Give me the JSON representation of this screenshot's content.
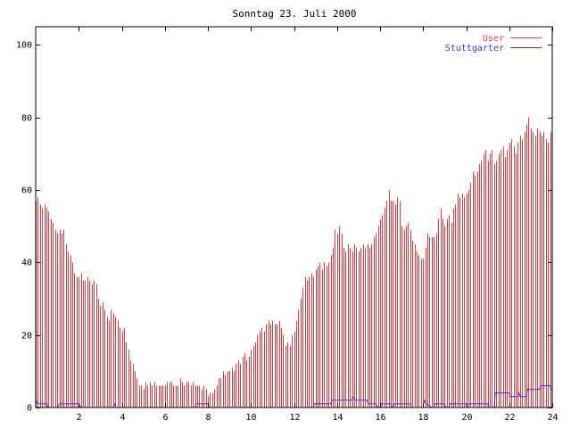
{
  "chart_data": {
    "type": "bar",
    "title": "Sonntag 23. Juli 2000",
    "xlabel": "",
    "ylabel": "",
    "xlim": [
      0,
      24
    ],
    "ylim": [
      0,
      105
    ],
    "x_ticks": [
      2,
      4,
      6,
      8,
      10,
      12,
      14,
      16,
      18,
      20,
      22,
      24
    ],
    "y_ticks": [
      0,
      20,
      40,
      60,
      80,
      100
    ],
    "grid": false,
    "legend_position": "top-right",
    "series": [
      {
        "name": "User",
        "style": "impulses",
        "color": "#e8383f",
        "points": [
          [
            0.0,
            57
          ],
          [
            0.1,
            58
          ],
          [
            0.2,
            56
          ],
          [
            0.3,
            55
          ],
          [
            0.4,
            56
          ],
          [
            0.5,
            55
          ],
          [
            0.6,
            54
          ],
          [
            0.7,
            52
          ],
          [
            0.8,
            51
          ],
          [
            0.9,
            49
          ],
          [
            1.0,
            48
          ],
          [
            1.1,
            49
          ],
          [
            1.2,
            48
          ],
          [
            1.3,
            49
          ],
          [
            1.4,
            45
          ],
          [
            1.5,
            43
          ],
          [
            1.6,
            42
          ],
          [
            1.7,
            40
          ],
          [
            1.8,
            37
          ],
          [
            1.9,
            36
          ],
          [
            2.0,
            36
          ],
          [
            2.1,
            37
          ],
          [
            2.2,
            35
          ],
          [
            2.3,
            35
          ],
          [
            2.4,
            36
          ],
          [
            2.5,
            35
          ],
          [
            2.6,
            34
          ],
          [
            2.7,
            35
          ],
          [
            2.8,
            34
          ],
          [
            2.9,
            30
          ],
          [
            3.0,
            28
          ],
          [
            3.1,
            29
          ],
          [
            3.2,
            27
          ],
          [
            3.3,
            25
          ],
          [
            3.4,
            24
          ],
          [
            3.5,
            27
          ],
          [
            3.6,
            26
          ],
          [
            3.7,
            25
          ],
          [
            3.8,
            24
          ],
          [
            3.9,
            22
          ],
          [
            4.0,
            21
          ],
          [
            4.1,
            22
          ],
          [
            4.2,
            18
          ],
          [
            4.3,
            16
          ],
          [
            4.4,
            13
          ],
          [
            4.5,
            12
          ],
          [
            4.6,
            10
          ],
          [
            4.7,
            8
          ],
          [
            4.8,
            6
          ],
          [
            4.9,
            6
          ],
          [
            5.0,
            5
          ],
          [
            5.1,
            7
          ],
          [
            5.2,
            6
          ],
          [
            5.3,
            7
          ],
          [
            5.4,
            6
          ],
          [
            5.5,
            7
          ],
          [
            5.6,
            6
          ],
          [
            5.7,
            6
          ],
          [
            5.8,
            6
          ],
          [
            5.9,
            6
          ],
          [
            6.0,
            6
          ],
          [
            6.1,
            7
          ],
          [
            6.2,
            7
          ],
          [
            6.3,
            7
          ],
          [
            6.4,
            6
          ],
          [
            6.5,
            6
          ],
          [
            6.6,
            6
          ],
          [
            6.7,
            8
          ],
          [
            6.8,
            7
          ],
          [
            6.9,
            6
          ],
          [
            7.0,
            7
          ],
          [
            7.1,
            7
          ],
          [
            7.2,
            6
          ],
          [
            7.3,
            7
          ],
          [
            7.4,
            6
          ],
          [
            7.5,
            6
          ],
          [
            7.6,
            6
          ],
          [
            7.7,
            5
          ],
          [
            7.8,
            6
          ],
          [
            7.9,
            5
          ],
          [
            8.0,
            3
          ],
          [
            8.1,
            4
          ],
          [
            8.2,
            4
          ],
          [
            8.3,
            5
          ],
          [
            8.4,
            6
          ],
          [
            8.5,
            8
          ],
          [
            8.6,
            8
          ],
          [
            8.7,
            10
          ],
          [
            8.8,
            9
          ],
          [
            8.9,
            10
          ],
          [
            9.0,
            10
          ],
          [
            9.1,
            11
          ],
          [
            9.2,
            10
          ],
          [
            9.3,
            12
          ],
          [
            9.4,
            13
          ],
          [
            9.5,
            12
          ],
          [
            9.6,
            14
          ],
          [
            9.7,
            15
          ],
          [
            9.8,
            13
          ],
          [
            9.9,
            14
          ],
          [
            10.0,
            16
          ],
          [
            10.1,
            17
          ],
          [
            10.2,
            18
          ],
          [
            10.3,
            20
          ],
          [
            10.4,
            21
          ],
          [
            10.5,
            22
          ],
          [
            10.6,
            21
          ],
          [
            10.7,
            23
          ],
          [
            10.8,
            24
          ],
          [
            10.9,
            23
          ],
          [
            11.0,
            24
          ],
          [
            11.1,
            23
          ],
          [
            11.2,
            23
          ],
          [
            11.3,
            24
          ],
          [
            11.4,
            22
          ],
          [
            11.5,
            20
          ],
          [
            11.6,
            17
          ],
          [
            11.7,
            18
          ],
          [
            11.8,
            17
          ],
          [
            11.9,
            20
          ],
          [
            12.0,
            21
          ],
          [
            12.1,
            24
          ],
          [
            12.2,
            27
          ],
          [
            12.3,
            30
          ],
          [
            12.4,
            33
          ],
          [
            12.5,
            36
          ],
          [
            12.6,
            35
          ],
          [
            12.7,
            36
          ],
          [
            12.8,
            37
          ],
          [
            12.9,
            36
          ],
          [
            13.0,
            38
          ],
          [
            13.1,
            39
          ],
          [
            13.2,
            40
          ],
          [
            13.3,
            38
          ],
          [
            13.4,
            40
          ],
          [
            13.5,
            39
          ],
          [
            13.6,
            40
          ],
          [
            13.7,
            42
          ],
          [
            13.8,
            44
          ],
          [
            13.9,
            49
          ],
          [
            14.0,
            48
          ],
          [
            14.1,
            50
          ],
          [
            14.2,
            48
          ],
          [
            14.3,
            44
          ],
          [
            14.4,
            43
          ],
          [
            14.5,
            45
          ],
          [
            14.6,
            44
          ],
          [
            14.7,
            43
          ],
          [
            14.8,
            45
          ],
          [
            14.9,
            44
          ],
          [
            15.0,
            43
          ],
          [
            15.1,
            44
          ],
          [
            15.2,
            45
          ],
          [
            15.3,
            44
          ],
          [
            15.4,
            45
          ],
          [
            15.5,
            44
          ],
          [
            15.6,
            45
          ],
          [
            15.7,
            47
          ],
          [
            15.8,
            48
          ],
          [
            15.9,
            50
          ],
          [
            16.0,
            52
          ],
          [
            16.1,
            53
          ],
          [
            16.2,
            55
          ],
          [
            16.3,
            57
          ],
          [
            16.4,
            60
          ],
          [
            16.5,
            57
          ],
          [
            16.6,
            57
          ],
          [
            16.7,
            56
          ],
          [
            16.8,
            58
          ],
          [
            16.9,
            57
          ],
          [
            17.0,
            50
          ],
          [
            17.1,
            49
          ],
          [
            17.2,
            50
          ],
          [
            17.3,
            51
          ],
          [
            17.4,
            49
          ],
          [
            17.5,
            46
          ],
          [
            17.6,
            45
          ],
          [
            17.7,
            43
          ],
          [
            17.8,
            42
          ],
          [
            17.9,
            41
          ],
          [
            18.0,
            41
          ],
          [
            18.1,
            44
          ],
          [
            18.2,
            48
          ],
          [
            18.3,
            47
          ],
          [
            18.4,
            47
          ],
          [
            18.5,
            47
          ],
          [
            18.6,
            48
          ],
          [
            18.7,
            52
          ],
          [
            18.8,
            55
          ],
          [
            18.9,
            52
          ],
          [
            19.0,
            50
          ],
          [
            19.1,
            52
          ],
          [
            19.2,
            53
          ],
          [
            19.3,
            51
          ],
          [
            19.4,
            55
          ],
          [
            19.5,
            56
          ],
          [
            19.6,
            59
          ],
          [
            19.7,
            58
          ],
          [
            19.8,
            59
          ],
          [
            19.9,
            58
          ],
          [
            20.0,
            59
          ],
          [
            20.1,
            60
          ],
          [
            20.2,
            62
          ],
          [
            20.3,
            65
          ],
          [
            20.4,
            64
          ],
          [
            20.5,
            65
          ],
          [
            20.6,
            67
          ],
          [
            20.7,
            68
          ],
          [
            20.8,
            70
          ],
          [
            20.9,
            71
          ],
          [
            21.0,
            68
          ],
          [
            21.1,
            70
          ],
          [
            21.2,
            71
          ],
          [
            21.3,
            67
          ],
          [
            21.4,
            68
          ],
          [
            21.5,
            70
          ],
          [
            21.6,
            71
          ],
          [
            21.7,
            72
          ],
          [
            21.8,
            69
          ],
          [
            21.9,
            71
          ],
          [
            22.0,
            73
          ],
          [
            22.1,
            74
          ],
          [
            22.2,
            72
          ],
          [
            22.3,
            70
          ],
          [
            22.4,
            73
          ],
          [
            22.5,
            75
          ],
          [
            22.6,
            74
          ],
          [
            22.7,
            76
          ],
          [
            22.8,
            78
          ],
          [
            22.9,
            80
          ],
          [
            23.0,
            77
          ],
          [
            23.1,
            76
          ],
          [
            23.2,
            75
          ],
          [
            23.3,
            77
          ],
          [
            23.4,
            76
          ],
          [
            23.5,
            75
          ],
          [
            23.6,
            76
          ],
          [
            23.7,
            74
          ],
          [
            23.8,
            73
          ],
          [
            23.9,
            76
          ]
        ]
      },
      {
        "name": "Stuttgarter",
        "style": "line",
        "color": "#3333cc",
        "points": [
          [
            0.0,
            2
          ],
          [
            0.1,
            1
          ],
          [
            0.5,
            1
          ],
          [
            0.6,
            0
          ],
          [
            1.0,
            0
          ],
          [
            1.1,
            1
          ],
          [
            2.0,
            1
          ],
          [
            2.1,
            0
          ],
          [
            3.6,
            0
          ],
          [
            3.65,
            1
          ],
          [
            3.75,
            0
          ],
          [
            7.4,
            0
          ],
          [
            7.45,
            1
          ],
          [
            8.0,
            1
          ],
          [
            8.05,
            0
          ],
          [
            12.9,
            0
          ],
          [
            12.95,
            1
          ],
          [
            13.7,
            1
          ],
          [
            13.75,
            2
          ],
          [
            14.7,
            2
          ],
          [
            14.75,
            3
          ],
          [
            14.85,
            2
          ],
          [
            15.4,
            2
          ],
          [
            15.45,
            1
          ],
          [
            15.8,
            1
          ],
          [
            15.9,
            0
          ],
          [
            16.0,
            0
          ],
          [
            16.05,
            1
          ],
          [
            16.5,
            1
          ],
          [
            16.55,
            0
          ],
          [
            16.6,
            0
          ],
          [
            16.65,
            1
          ],
          [
            17.4,
            1
          ],
          [
            17.45,
            0
          ],
          [
            18.0,
            0
          ],
          [
            18.05,
            2
          ],
          [
            18.15,
            1
          ],
          [
            18.4,
            0
          ],
          [
            18.5,
            0
          ],
          [
            18.55,
            1
          ],
          [
            19.0,
            1
          ],
          [
            19.05,
            0
          ],
          [
            19.2,
            0
          ],
          [
            19.25,
            1
          ],
          [
            20.0,
            1
          ],
          [
            20.05,
            0
          ],
          [
            20.1,
            0
          ],
          [
            20.15,
            1
          ],
          [
            21.0,
            1
          ],
          [
            21.05,
            0
          ],
          [
            21.3,
            0
          ],
          [
            21.35,
            4
          ],
          [
            22.0,
            4
          ],
          [
            22.05,
            3
          ],
          [
            22.4,
            3
          ],
          [
            22.45,
            4
          ],
          [
            22.5,
            3
          ],
          [
            22.8,
            3
          ],
          [
            22.85,
            5
          ],
          [
            23.4,
            5
          ],
          [
            23.45,
            6
          ],
          [
            23.9,
            6
          ],
          [
            23.95,
            5
          ],
          [
            24.0,
            5
          ]
        ]
      }
    ]
  }
}
